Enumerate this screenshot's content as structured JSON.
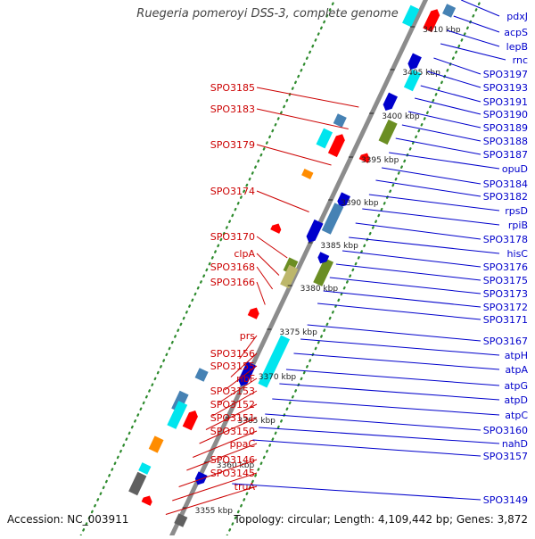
{
  "title": "Ruegeria pomeroyi DSS-3, complete genome",
  "footer": {
    "accession": "Accession: NC_003911",
    "topology": "Topology: circular; Length: 4,109,442 bp; Genes: 3,872"
  },
  "colors": {
    "axis": "#8c8c8c",
    "dots": "#2e8b2e",
    "left_label": "#cc0000",
    "right_label": "#0000cc",
    "forward_gene": "#ff0000",
    "reverse_gene": "#0000cc",
    "cog_cyan": "#00e5ee",
    "cog_steelblue": "#4682b4",
    "cog_olive": "#6b8e23",
    "cog_khaki": "#bdb76b",
    "cog_gray": "#606060",
    "cog_orange": "#ff8c00"
  },
  "scale": [
    "3410 kbp",
    "3405 kbp",
    "3400 kbp",
    "3395 kbp",
    "3390 kbp",
    "3385 kbp",
    "3380 kbp",
    "3375 kbp",
    "3370 kbp",
    "3365 kbp",
    "3360 kbp",
    "3355 kbp"
  ],
  "left_labels": [
    "SPO3185",
    "SPO3183",
    "SPO3179",
    "SPO3174",
    "SPO3170",
    "clpA",
    "SPO3168",
    "SPO3166",
    "prs",
    "SPO3156",
    "SPO3155",
    "ribF",
    "SPO3153",
    "SPO3152",
    "SPO3151",
    "SPO3150",
    "ppaC",
    "SPO3146",
    "SPO3145",
    "truA"
  ],
  "right_labels": [
    "pdxJ",
    "acpS",
    "lepB",
    "rnc",
    "SPO3197",
    "SPO3193",
    "SPO3191",
    "SPO3190",
    "SPO3189",
    "SPO3188",
    "SPO3187",
    "opuD",
    "SPO3184",
    "SPO3182",
    "rpsD",
    "rpiB",
    "SPO3178",
    "hisC",
    "SPO3176",
    "SPO3175",
    "SPO3173",
    "SPO3172",
    "SPO3171",
    "SPO3167",
    "atpH",
    "atpA",
    "atpG",
    "atpD",
    "atpC",
    "SPO3160",
    "nahD",
    "SPO3157",
    "SPO3149"
  ]
}
